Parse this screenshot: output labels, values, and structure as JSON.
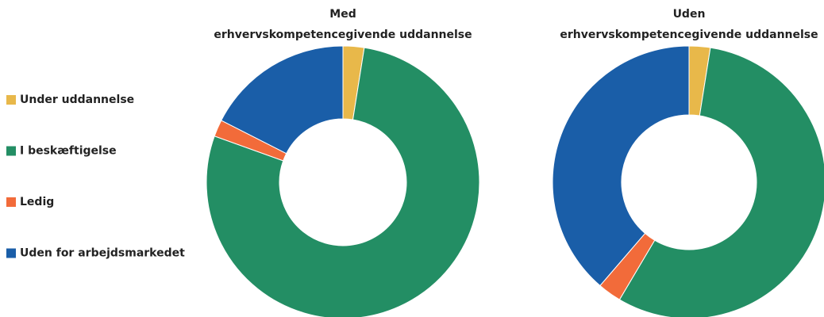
{
  "chart_data": [
    {
      "type": "donut",
      "title": [
        "Med",
        "erhvervskompetencegivende uddannelse"
      ],
      "categories": [
        "Under uddannelse",
        "I beskæftigelse",
        "Ledig",
        "Uden for arbejdsmarkedet"
      ],
      "values": [
        2.5,
        78,
        2,
        17.5
      ],
      "colors": [
        "#e8b84a",
        "#238e64",
        "#f26b3a",
        "#1a5ea8"
      ]
    },
    {
      "type": "donut",
      "title": [
        "Uden",
        "erhvervskompetencegivende uddannelse"
      ],
      "categories": [
        "Under uddannelse",
        "I beskæftigelse",
        "Ledig",
        "Uden for arbejdsmarkedet"
      ],
      "values": [
        2.5,
        56,
        2.8,
        38.7
      ],
      "colors": [
        "#e8b84a",
        "#238e64",
        "#f26b3a",
        "#1a5ea8"
      ]
    }
  ]
}
